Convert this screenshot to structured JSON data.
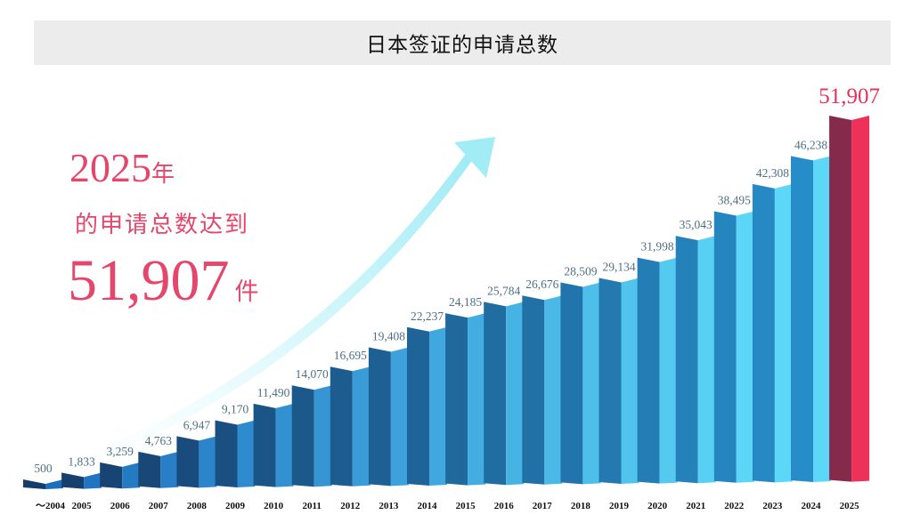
{
  "title": "日本签证的申请总数",
  "callout": {
    "year": "2025",
    "year_unit": "年",
    "middle": "的申请总数达到",
    "number": "51,907",
    "number_unit": "件"
  },
  "colors": {
    "highlight_front": "#ee3158",
    "highlight_top": "#862a4b",
    "arrow": "#a9eef7",
    "value_label": "#4d6f86",
    "highlight_label": "#e6315a"
  },
  "chart_data": {
    "type": "bar",
    "title": "日本签证的申请总数",
    "xlabel": "",
    "ylabel": "",
    "categories": [
      "～2004",
      "2005",
      "2006",
      "2007",
      "2008",
      "2009",
      "2010",
      "2011",
      "2012",
      "2013",
      "2014",
      "2015",
      "2016",
      "2017",
      "2018",
      "2019",
      "2020",
      "2021",
      "2022",
      "2023",
      "2024",
      "2025"
    ],
    "values": [
      500,
      1833,
      3259,
      4763,
      6947,
      9170,
      11490,
      14070,
      16695,
      19408,
      22237,
      24185,
      25784,
      26676,
      28509,
      29134,
      31998,
      35043,
      38495,
      42308,
      46238,
      51907
    ],
    "labels": [
      "500",
      "1,833",
      "3,259",
      "4,763",
      "6,947",
      "9,170",
      "11,490",
      "14,070",
      "16,695",
      "19,408",
      "22,237",
      "24,185",
      "25,784",
      "26,676",
      "28,509",
      "29,134",
      "31,998",
      "35,043",
      "38,495",
      "42,308",
      "46,238",
      "51,907"
    ],
    "highlight_index": 21,
    "ylim": [
      0,
      55000
    ],
    "grid": false,
    "legend": "none"
  }
}
